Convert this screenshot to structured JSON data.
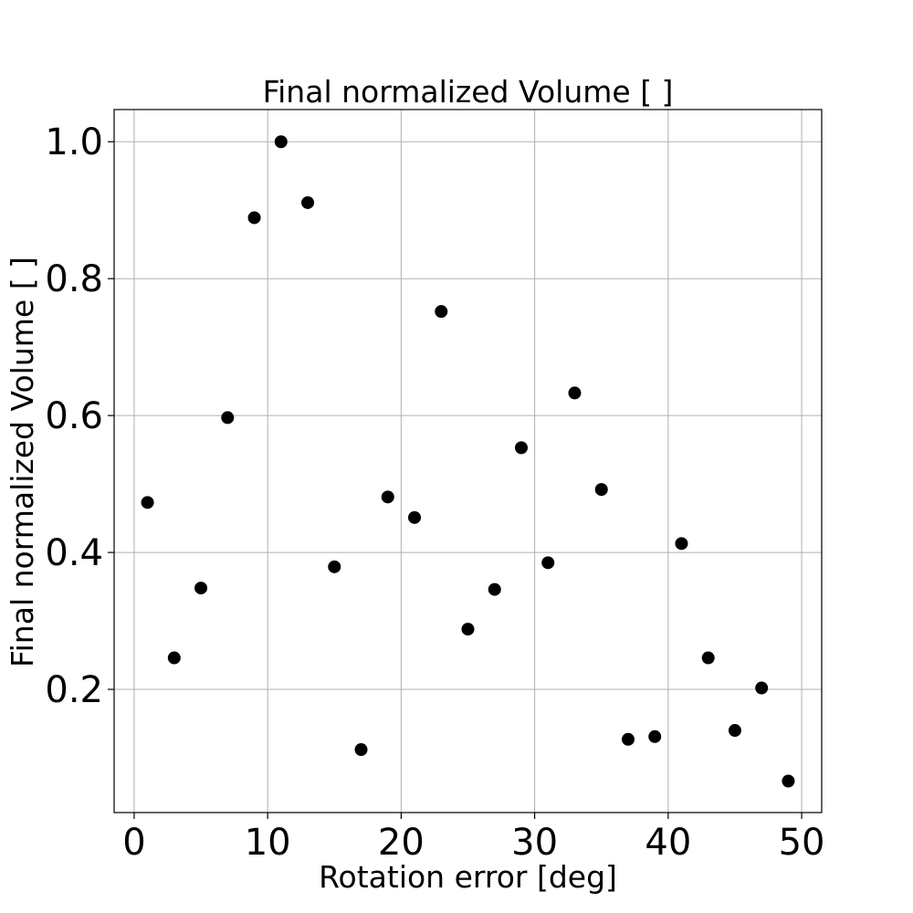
{
  "chart_data": {
    "type": "scatter",
    "title": "Final normalized Volume [ ]",
    "xlabel": "Rotation error [deg]",
    "ylabel": "Final normalized Volume [ ]",
    "xlim": [
      -1.5,
      51.5
    ],
    "ylim": [
      0.02,
      1.047
    ],
    "xticks": [
      0,
      10,
      20,
      30,
      40,
      50
    ],
    "yticks": [
      0.2,
      0.4,
      0.6,
      0.8,
      1.0
    ],
    "xtick_labels": [
      "0",
      "10",
      "20",
      "30",
      "40",
      "50"
    ],
    "ytick_labels": [
      "0.2",
      "0.4",
      "0.6",
      "0.8",
      "1.0"
    ],
    "grid": true,
    "marker_color": "#000000",
    "grid_color": "#b0b0b0",
    "series": [
      {
        "x": [
          1,
          3,
          5,
          7,
          9,
          11,
          13,
          15,
          17,
          19,
          21,
          23,
          25,
          27,
          29,
          31,
          33,
          35,
          37,
          39,
          41,
          43,
          45,
          47,
          49
        ],
        "y": [
          0.473,
          0.246,
          0.348,
          0.597,
          0.889,
          1.0,
          0.911,
          0.379,
          0.112,
          0.481,
          0.451,
          0.752,
          0.288,
          0.346,
          0.553,
          0.385,
          0.633,
          0.492,
          0.127,
          0.131,
          0.413,
          0.246,
          0.14,
          0.202,
          0.066
        ]
      }
    ]
  }
}
